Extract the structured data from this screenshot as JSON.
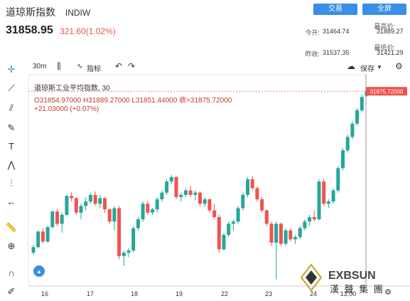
{
  "header": {
    "title": "道琼斯指数",
    "code": "INDIW",
    "trade_btn": "交易",
    "all_btn": "全屏",
    "price": "31858.95",
    "change": "321.60(1.02%)",
    "open_label": "今开:",
    "open": "31464.74",
    "high_label": "最高价:",
    "high": "31889.27",
    "prev_label": "昨收:",
    "prev": "31537.35",
    "low_label": "最低价:",
    "low": "31421.29"
  },
  "toolbar": {
    "interval": "30m",
    "indicator": "指标",
    "save": "保存"
  },
  "legend": {
    "name": "道琼斯工业平均指数, 30",
    "ohlc": "O31854.97000  H31889.27000  L31851.44000  收=31875.72000",
    "delta": "+21.03000 (+0.07%)"
  },
  "price_tag": "31875.72000",
  "watermark": "漢 聲 集 團",
  "colors": {
    "up": "#26a69a",
    "down": "#ef5350",
    "accent": "#3a8ee6"
  },
  "chart_data": {
    "type": "candlestick",
    "x_ticks": [
      "16",
      "17",
      "18",
      "19",
      "22",
      "23",
      "24",
      "13:00"
    ],
    "ylim": [
      31000,
      31950
    ],
    "last": 31875.72,
    "candles": [
      [
        31150,
        31185,
        31140,
        31175
      ],
      [
        31175,
        31250,
        31170,
        31245
      ],
      [
        31245,
        31260,
        31190,
        31200
      ],
      [
        31200,
        31270,
        31195,
        31265
      ],
      [
        31265,
        31340,
        31260,
        31335
      ],
      [
        31335,
        31345,
        31270,
        31280
      ],
      [
        31280,
        31330,
        31240,
        31320
      ],
      [
        31320,
        31410,
        31315,
        31405
      ],
      [
        31405,
        31420,
        31380,
        31395
      ],
      [
        31395,
        31400,
        31320,
        31330
      ],
      [
        31330,
        31370,
        31300,
        31360
      ],
      [
        31360,
        31400,
        31340,
        31380
      ],
      [
        31380,
        31420,
        31370,
        31410
      ],
      [
        31410,
        31425,
        31360,
        31370
      ],
      [
        31370,
        31410,
        31350,
        31395
      ],
      [
        31395,
        31400,
        31330,
        31345
      ],
      [
        31345,
        31350,
        31280,
        31290
      ],
      [
        31290,
        31360,
        31250,
        31350
      ],
      [
        31350,
        31360,
        31120,
        31135
      ],
      [
        31135,
        31160,
        31090,
        31150
      ],
      [
        31150,
        31170,
        31130,
        31160
      ],
      [
        31160,
        31270,
        31150,
        31260
      ],
      [
        31260,
        31310,
        31250,
        31300
      ],
      [
        31300,
        31380,
        31290,
        31370
      ],
      [
        31370,
        31380,
        31320,
        31330
      ],
      [
        31330,
        31350,
        31320,
        31345
      ],
      [
        31345,
        31400,
        31330,
        31390
      ],
      [
        31390,
        31430,
        31380,
        31420
      ],
      [
        31420,
        31480,
        31410,
        31470
      ],
      [
        31470,
        31500,
        31460,
        31490
      ],
      [
        31490,
        31495,
        31390,
        31400
      ],
      [
        31400,
        31420,
        31380,
        31410
      ],
      [
        31410,
        31440,
        31400,
        31430
      ],
      [
        31430,
        31450,
        31400,
        31410
      ],
      [
        31410,
        31430,
        31385,
        31420
      ],
      [
        31420,
        31425,
        31360,
        31370
      ],
      [
        31370,
        31400,
        31355,
        31390
      ],
      [
        31390,
        31395,
        31330,
        31340
      ],
      [
        31340,
        31370,
        31300,
        31310
      ],
      [
        31310,
        31320,
        31150,
        31165
      ],
      [
        31165,
        31240,
        31160,
        31230
      ],
      [
        31230,
        31290,
        31220,
        31280
      ],
      [
        31280,
        31300,
        31250,
        31290
      ],
      [
        31290,
        31360,
        31280,
        31350
      ],
      [
        31350,
        31420,
        31340,
        31410
      ],
      [
        31410,
        31490,
        31400,
        31480
      ],
      [
        31480,
        31495,
        31430,
        31440
      ],
      [
        31440,
        31450,
        31380,
        31390
      ],
      [
        31390,
        31400,
        31330,
        31340
      ],
      [
        31340,
        31345,
        31270,
        31280
      ],
      [
        31280,
        31290,
        31180,
        31195
      ],
      [
        31195,
        31290,
        31030,
        31280
      ],
      [
        31280,
        31285,
        31180,
        31190
      ],
      [
        31190,
        31260,
        31180,
        31250
      ],
      [
        31250,
        31260,
        31200,
        31210
      ],
      [
        31210,
        31230,
        31190,
        31220
      ],
      [
        31220,
        31270,
        31210,
        31260
      ],
      [
        31260,
        31300,
        31250,
        31290
      ],
      [
        31290,
        31320,
        31270,
        31310
      ],
      [
        31310,
        31340,
        31290,
        31300
      ],
      [
        31300,
        31480,
        31295,
        31470
      ],
      [
        31470,
        31480,
        31360,
        31370
      ],
      [
        31370,
        31390,
        31350,
        31380
      ],
      [
        31380,
        31440,
        31370,
        31430
      ],
      [
        31430,
        31540,
        31420,
        31530
      ],
      [
        31530,
        31620,
        31520,
        31610
      ],
      [
        31610,
        31680,
        31600,
        31670
      ],
      [
        31670,
        31740,
        31660,
        31730
      ],
      [
        31730,
        31800,
        31720,
        31790
      ],
      [
        31790,
        31860,
        31780,
        31850
      ],
      [
        31854.97,
        31889.27,
        31851.44,
        31875.72
      ]
    ]
  }
}
